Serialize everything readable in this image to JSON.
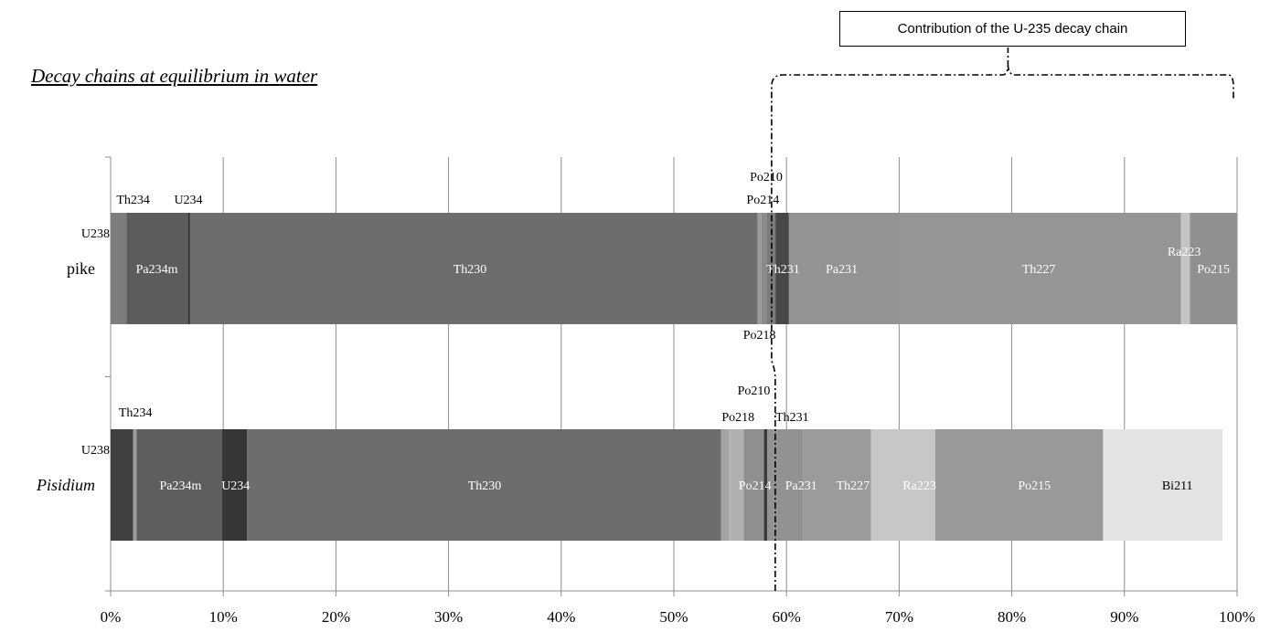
{
  "chart_data": {
    "type": "bar",
    "orientation": "horizontal",
    "stacked": true,
    "title": "Decay chains at equilibrium in water",
    "annotation": "Contribution of the U-235 decay chain",
    "x_axis": {
      "range": [
        0,
        100
      ],
      "ticks": [
        "0%",
        "10%",
        "20%",
        "30%",
        "40%",
        "50%",
        "60%",
        "70%",
        "80%",
        "90%",
        "100%"
      ]
    },
    "grid": true,
    "categories": [
      "pike",
      "Pisidium"
    ],
    "rows": [
      {
        "label": "pike",
        "italic": false,
        "segments": [
          {
            "name": "U238",
            "value": 1.4,
            "color": "#7d7d7d"
          },
          {
            "name": "Pa234m",
            "value": 5.5,
            "color": "#5c5c5c"
          },
          {
            "name": "U234",
            "value": 0.12,
            "color": "#2a2a2a"
          },
          {
            "name": "Th230",
            "value": 50.4,
            "color": "#6d6d6d"
          },
          {
            "name": "Po218",
            "value": 0.35,
            "color": "#9a9a9a"
          },
          {
            "name": "Po214",
            "value": 0.45,
            "color": "#8a8a8a"
          },
          {
            "name": "Po210",
            "value": 0.8,
            "color": "#7a7a7a"
          },
          {
            "name": "Th231",
            "value": 1.2,
            "color": "#474747"
          },
          {
            "name": "Pa231",
            "value": 9.8,
            "color": "#939393"
          },
          {
            "name": "Th227",
            "value": 25.0,
            "color": "#959595"
          },
          {
            "name": "Ra223",
            "value": 0.8,
            "color": "#c4c4c4"
          },
          {
            "name": "Po215",
            "value": 4.18,
            "color": "#909090"
          }
        ],
        "labels": [
          {
            "text": "U238",
            "at": 0,
            "pos": "left",
            "color": "#000"
          },
          {
            "text": "Th234",
            "at": 2.0,
            "pos": "above",
            "color": "#000"
          },
          {
            "text": "U234",
            "at": 6.9,
            "pos": "above",
            "color": "#000"
          },
          {
            "text": "Pa234m",
            "at": 4.1,
            "pos": "inside",
            "color": "#ffffff"
          },
          {
            "text": "Th230",
            "at": 31.9,
            "pos": "inside",
            "color": "#ffffff"
          },
          {
            "text": "Po210",
            "at": 58.2,
            "pos": "above2",
            "color": "#000"
          },
          {
            "text": "Po214",
            "at": 57.9,
            "pos": "above",
            "color": "#000"
          },
          {
            "text": "Po218",
            "at": 57.6,
            "pos": "below",
            "color": "#000"
          },
          {
            "text": "Th231",
            "at": 59.7,
            "pos": "inside",
            "color": "#ffffff"
          },
          {
            "text": "Pa231",
            "at": 64.9,
            "pos": "inside",
            "color": "#ffffff"
          },
          {
            "text": "Th227",
            "at": 82.4,
            "pos": "inside",
            "color": "#ffffff"
          },
          {
            "text": "Ra223",
            "at": 95.3,
            "pos": "inside-high",
            "color": "#ffffff"
          },
          {
            "text": "Po215",
            "at": 97.9,
            "pos": "inside",
            "color": "#ffffff"
          }
        ]
      },
      {
        "label": "Pisidium",
        "italic": true,
        "segments": [
          {
            "name": "U238",
            "value": 2.0,
            "color": "#404040"
          },
          {
            "name": "Th234",
            "value": 0.3,
            "color": "#9a9a9a"
          },
          {
            "name": "Pa234m",
            "value": 7.6,
            "color": "#5e5e5e"
          },
          {
            "name": "U234",
            "value": 2.2,
            "color": "#363636"
          },
          {
            "name": "Th230",
            "value": 42.1,
            "color": "#6d6d6d"
          },
          {
            "name": "Po218",
            "value": 0.7,
            "color": "#a3a3a3"
          },
          {
            "name": "Po214",
            "value": 1.3,
            "color": "#b0b0b0"
          },
          {
            "name": "Po210",
            "value": 1.8,
            "color": "#8f8f8f"
          },
          {
            "name": "Th231",
            "value": 0.3,
            "color": "#3a3a3a"
          },
          {
            "name": "Pa231",
            "value": 3.2,
            "color": "#929292"
          },
          {
            "name": "Th227",
            "value": 6.0,
            "color": "#9b9b9b"
          },
          {
            "name": "Ra223",
            "value": 5.7,
            "color": "#c7c7c7"
          },
          {
            "name": "Po215",
            "value": 14.9,
            "color": "#999999"
          },
          {
            "name": "Bi211",
            "value": 10.6,
            "color": "#e3e3e3"
          }
        ],
        "labels": [
          {
            "text": "U238",
            "at": 0,
            "pos": "left",
            "color": "#000"
          },
          {
            "text": "Th234",
            "at": 2.2,
            "pos": "above-high",
            "color": "#000"
          },
          {
            "text": "Pa234m",
            "at": 6.2,
            "pos": "inside",
            "color": "#ffffff"
          },
          {
            "text": "U234",
            "at": 11.1,
            "pos": "inside",
            "color": "#ffffff"
          },
          {
            "text": "Th230",
            "at": 33.2,
            "pos": "inside",
            "color": "#ffffff"
          },
          {
            "text": "Po210",
            "at": 57.1,
            "pos": "above2",
            "color": "#000"
          },
          {
            "text": "Po218",
            "at": 55.7,
            "pos": "above",
            "color": "#000"
          },
          {
            "text": "Th231",
            "at": 60.5,
            "pos": "above",
            "color": "#000"
          },
          {
            "text": "Po214",
            "at": 57.2,
            "pos": "inside",
            "color": "#ffffff"
          },
          {
            "text": "Pa231",
            "at": 61.3,
            "pos": "inside",
            "color": "#ffffff"
          },
          {
            "text": "Th227",
            "at": 65.9,
            "pos": "inside",
            "color": "#ffffff"
          },
          {
            "text": "Ra223",
            "at": 71.8,
            "pos": "inside",
            "color": "#ffffff"
          },
          {
            "text": "Po215",
            "at": 82.0,
            "pos": "inside",
            "color": "#ffffff"
          },
          {
            "text": "Bi211",
            "at": 94.7,
            "pos": "inside",
            "color": "#000"
          }
        ]
      }
    ],
    "bracket": {
      "from": 59,
      "to": 100
    }
  }
}
